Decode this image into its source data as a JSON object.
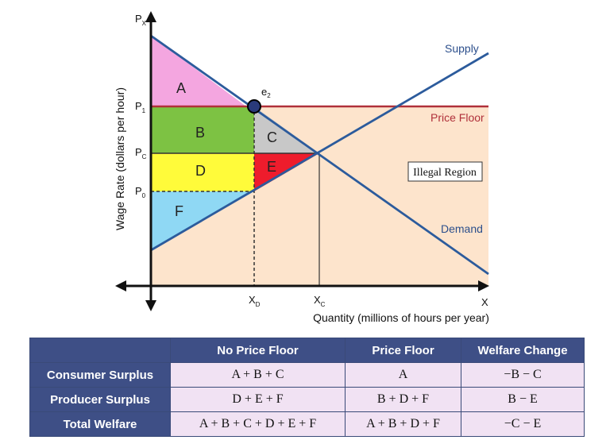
{
  "diagram": {
    "y_axis_title": "Wage Rate (dollars per hour)",
    "x_axis_title": "Quantity (millions of hours per year)",
    "y_axis_labels": {
      "px": {
        "main": "P",
        "sub": "X"
      },
      "p1": {
        "main": "P",
        "sub": "1"
      },
      "pc": {
        "main": "P",
        "sub": "C"
      },
      "p0": {
        "main": "P",
        "sub": "0"
      }
    },
    "x_axis_labels": {
      "xd": {
        "main": "X",
        "sub": "D"
      },
      "xc": {
        "main": "X",
        "sub": "C"
      },
      "x": "X"
    },
    "point_label": {
      "main": "e",
      "sub": "2"
    },
    "regions": {
      "a": "A",
      "b": "B",
      "c": "C",
      "d": "D",
      "e": "E",
      "f": "F"
    },
    "curves": {
      "supply": "Supply",
      "demand": "Demand",
      "price_floor": "Price Floor"
    },
    "illegal_region": "Illegal Region",
    "colors": {
      "a": "#f4a6e0",
      "b": "#7dc243",
      "c": "#c8c8c8",
      "d": "#fffb3a",
      "e": "#ee1c2c",
      "f": "#8fd8f4",
      "illegal": "#fde4cc",
      "curve": "#2c5b9c",
      "price_floor": "#b0303a"
    }
  },
  "table": {
    "headers": [
      "",
      "No Price Floor",
      "Price Floor",
      "Welfare Change"
    ],
    "rows": [
      {
        "label": "Consumer Surplus",
        "no_floor": "A + B + C",
        "floor": "A",
        "change": "−B − C"
      },
      {
        "label": "Producer Surplus",
        "no_floor": "D + E + F",
        "floor": "B + D + F",
        "change": "B − E"
      },
      {
        "label": "Total Welfare",
        "no_floor": "A + B + C + D + E + F",
        "floor": "A + B + D + F",
        "change": "−C − E"
      }
    ]
  }
}
